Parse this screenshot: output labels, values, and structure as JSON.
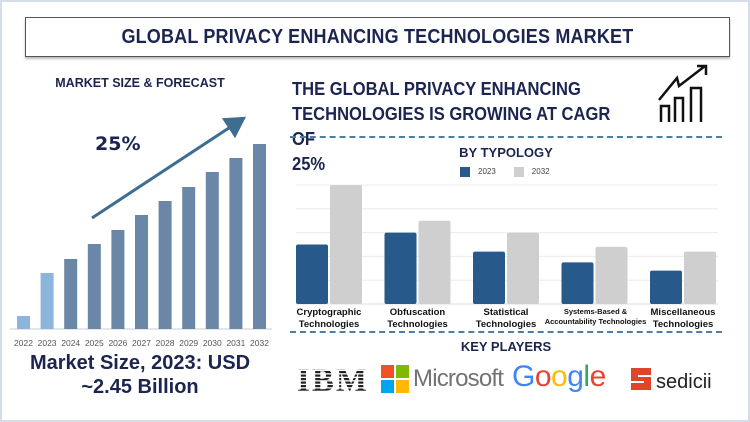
{
  "title": "GLOBAL PRIVACY ENHANCING TECHNOLOGIES MARKET",
  "market_size": {
    "title": "MARKET SIZE & FORECAST",
    "cagr_label": "25%",
    "summary_line1": "Market Size, 2023: USD",
    "summary_line2": "~2.45 Billion"
  },
  "headline": {
    "line1": "THE GLOBAL PRIVACY ENHANCING",
    "line2": "TECHNOLOGIES IS GROWING AT CAGR OF",
    "line3": "25%",
    "icon": "growth-chart-icon"
  },
  "typology_title": "BY TYPOLOGY",
  "key_players": {
    "title": "KEY PLAYERS",
    "logos": [
      "IBM",
      "Microsoft",
      "Google",
      "sedicii"
    ]
  },
  "colors": {
    "accent": "#1b2550",
    "bar_hist": "#8db4dc",
    "bar_forecast": "#6a87a7",
    "s2023": "#27598a",
    "s2032": "#cfcfcf"
  },
  "chart_data": [
    {
      "type": "bar",
      "title": "MARKET SIZE & FORECAST",
      "categories": [
        "2022",
        "2023",
        "2024",
        "2025",
        "2026",
        "2027",
        "2028",
        "2029",
        "2030",
        "2031",
        "2032"
      ],
      "values": [
        13,
        56,
        70,
        85,
        99,
        114,
        128,
        142,
        157,
        171,
        185
      ],
      "note": "relative heights; no value axis printed",
      "annotation": "25%",
      "grid": false
    },
    {
      "type": "bar",
      "title": "BY TYPOLOGY",
      "categories": [
        "Cryptographic Technologies",
        "Obfuscation Technologies",
        "Statistical Technologies",
        "Systems-Based & Accountability Technologies",
        "Miscellaneous Technologies"
      ],
      "series": [
        {
          "name": "2023",
          "values": [
            2.5,
            3.0,
            2.2,
            1.75,
            1.4
          ]
        },
        {
          "name": "2032",
          "values": [
            5.0,
            3.5,
            3.0,
            2.4,
            2.2
          ]
        }
      ],
      "ylim": [
        0,
        5
      ],
      "grid": true,
      "legend": "top"
    }
  ]
}
